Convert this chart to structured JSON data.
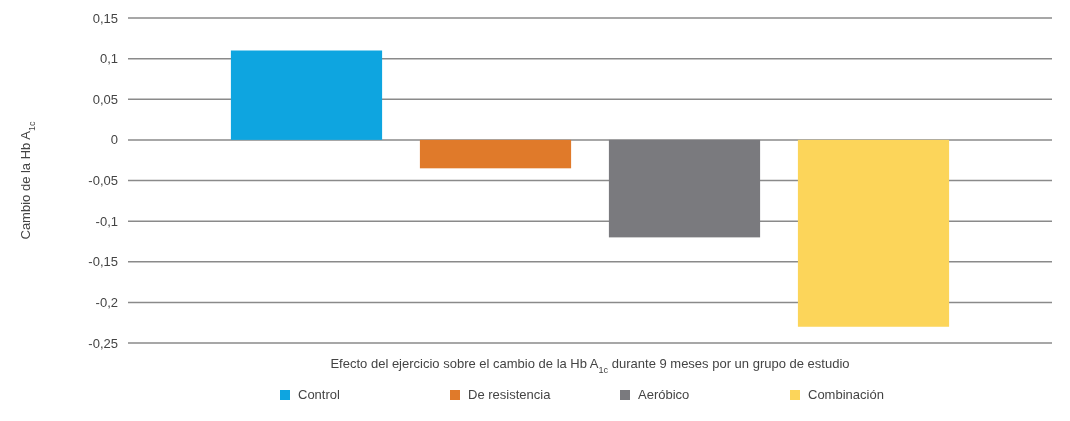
{
  "chart_data": {
    "type": "bar",
    "categories": [
      null
    ],
    "series": [
      {
        "name": "Control",
        "color": "#0ea5e0",
        "values": [
          0.11
        ]
      },
      {
        "name": "De resistencia",
        "color": "#e07a2a",
        "values": [
          -0.035
        ]
      },
      {
        "name": "Aeróbico",
        "color": "#7a7a7e",
        "values": [
          -0.12
        ]
      },
      {
        "name": "Combinación",
        "color": "#fcd55a",
        "values": [
          -0.23
        ]
      }
    ],
    "xlabel": "Efecto del ejercicio sobre el cambio de la Hb A$_{1c}$ durante 9 meses por un grupo de estudio",
    "ylabel": "Cambio de la Hb A$_{1c}$",
    "ylim": [
      -0.25,
      0.15
    ],
    "yticks": [
      {
        "value": 0.15,
        "label": "0,15"
      },
      {
        "value": 0.1,
        "label": "0,1"
      },
      {
        "value": 0.05,
        "label": "0,05"
      },
      0,
      {
        "value": -0.05,
        "label": "-0,05"
      },
      {
        "value": -0.1,
        "label": "-0,1"
      },
      {
        "value": -0.15,
        "label": "-0,15"
      },
      {
        "value": -0.2,
        "label": "-0,2"
      },
      {
        "value": -0.25,
        "label": "-0,25"
      }
    ],
    "grid": "y",
    "legend": "bottom"
  }
}
